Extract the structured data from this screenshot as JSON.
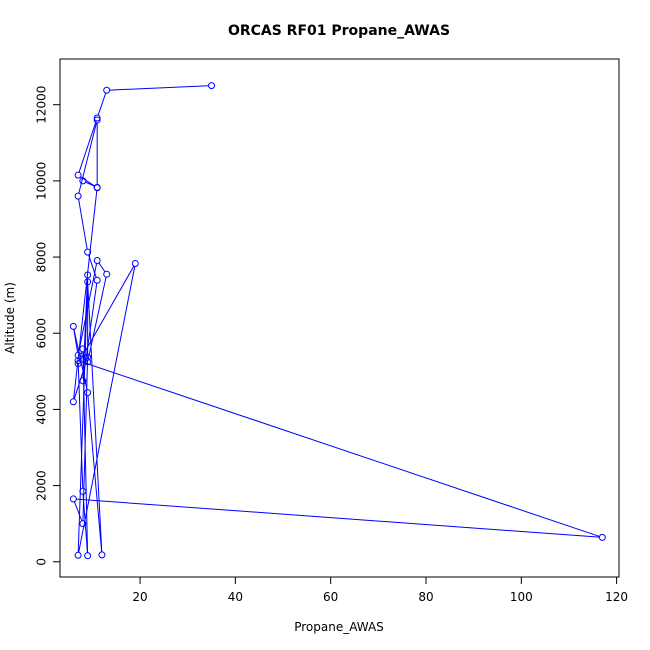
{
  "chart_data": {
    "type": "line",
    "title": "ORCAS RF01 Propane_AWAS",
    "xlabel": "Propane_AWAS",
    "ylabel": "Altitude (m)",
    "xlim": [
      3.2,
      120.5
    ],
    "ylim": [
      -400,
      13200
    ],
    "xticks": [
      20,
      40,
      60,
      80,
      100,
      120
    ],
    "yticks": [
      0,
      2000,
      4000,
      6000,
      8000,
      10000,
      12000
    ],
    "grid": false,
    "line_color": "#0000ff",
    "marker": "open-circle",
    "series": [
      {
        "points": [
          [
            35.0,
            12500
          ],
          [
            13.0,
            12380
          ],
          [
            11.0,
            11650
          ],
          [
            7.0,
            10150
          ],
          [
            11.0,
            9820
          ],
          [
            11.0,
            11600
          ],
          [
            7.0,
            9600
          ],
          [
            9.0,
            8130
          ],
          [
            11.0,
            7390
          ],
          [
            8.0,
            4750
          ],
          [
            9.0,
            7530
          ],
          [
            9.0,
            5250
          ],
          [
            13.0,
            7550
          ],
          [
            11.0,
            7910
          ],
          [
            7.0,
            5420
          ],
          [
            6.0,
            6180
          ],
          [
            9.0,
            4440
          ],
          [
            12.0,
            180
          ],
          [
            9.0,
            7350
          ],
          [
            7.0,
            170
          ],
          [
            19.0,
            7830
          ],
          [
            7.0,
            5200
          ],
          [
            8.0,
            5590
          ],
          [
            9.0,
            160
          ],
          [
            8.0,
            1850
          ],
          [
            7.0,
            5280
          ],
          [
            117.0,
            640
          ],
          [
            6.0,
            1650
          ],
          [
            8.0,
            1000
          ],
          [
            9.0,
            5370
          ],
          [
            6.0,
            4200
          ],
          [
            11.0,
            9830
          ],
          [
            8.0,
            10000
          ]
        ]
      }
    ]
  }
}
